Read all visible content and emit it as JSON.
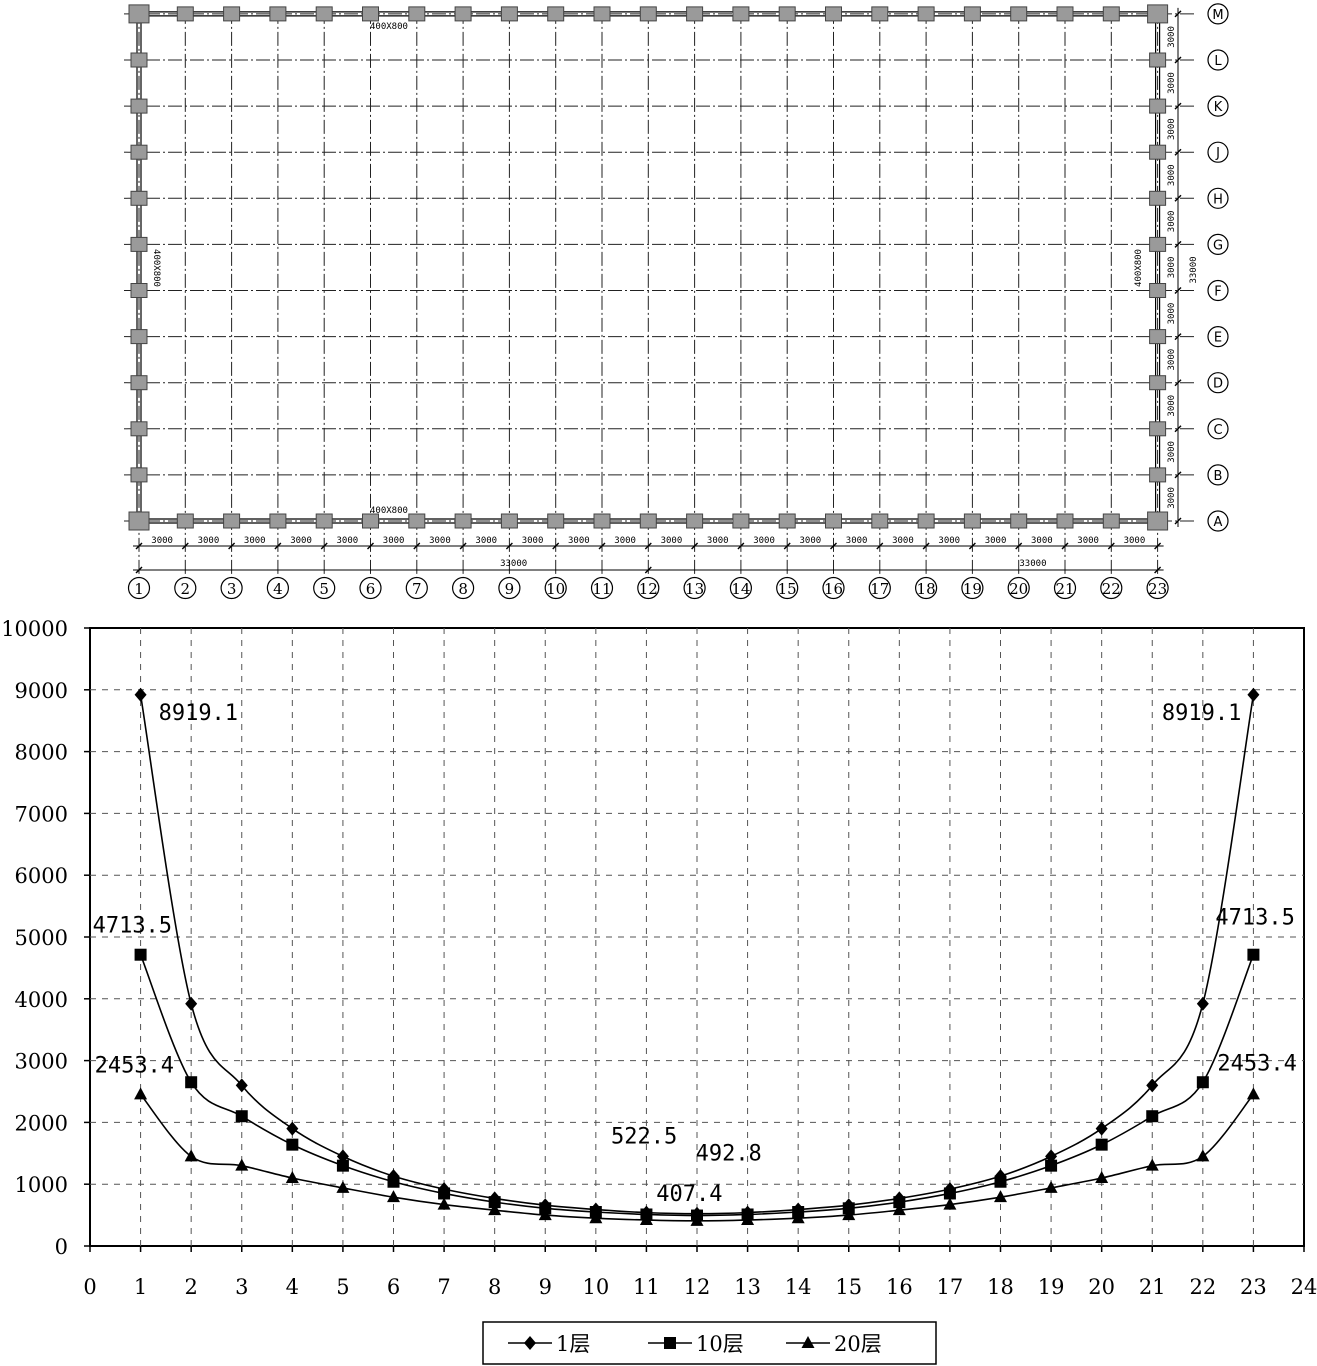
{
  "plan": {
    "column_axes": [
      "1",
      "2",
      "3",
      "4",
      "5",
      "6",
      "7",
      "8",
      "9",
      "10",
      "11",
      "12",
      "13",
      "14",
      "15",
      "16",
      "17",
      "18",
      "19",
      "20",
      "21",
      "22",
      "23"
    ],
    "row_axes": [
      "A",
      "B",
      "C",
      "D",
      "E",
      "F",
      "G",
      "H",
      "J",
      "K",
      "L",
      "M"
    ],
    "bay_label": "3000",
    "total_label_half": "33000",
    "total_label_vertical": "33000",
    "beam_label_top": "400X800",
    "beam_label_bottom": "400X800",
    "beam_label_left": "400X800",
    "beam_label_right": "400X800"
  },
  "chart_data": {
    "type": "line",
    "x": [
      1,
      2,
      3,
      4,
      5,
      6,
      7,
      8,
      9,
      10,
      11,
      12,
      13,
      14,
      15,
      16,
      17,
      18,
      19,
      20,
      21,
      22,
      23
    ],
    "xlim": [
      0,
      24
    ],
    "ylim": [
      0,
      10000
    ],
    "xticks": [
      0,
      1,
      2,
      3,
      4,
      5,
      6,
      7,
      8,
      9,
      10,
      11,
      12,
      13,
      14,
      15,
      16,
      17,
      18,
      19,
      20,
      21,
      22,
      23,
      24
    ],
    "yticks": [
      0,
      1000,
      2000,
      3000,
      4000,
      5000,
      6000,
      7000,
      8000,
      9000,
      10000
    ],
    "grid": true,
    "legend_position": "bottom",
    "series": [
      {
        "name": "1层",
        "marker": "diamond",
        "values": [
          8919.1,
          3920,
          2600,
          1900,
          1450,
          1130,
          920,
          770,
          660,
          590,
          540,
          522.5,
          540,
          590,
          660,
          770,
          920,
          1130,
          1450,
          1900,
          2600,
          3920,
          8919.1
        ]
      },
      {
        "name": "10层",
        "marker": "square",
        "values": [
          4713.5,
          2650,
          2100,
          1640,
          1300,
          1040,
          850,
          710,
          610,
          550,
          510,
          492.8,
          510,
          550,
          610,
          710,
          850,
          1040,
          1300,
          1640,
          2100,
          2650,
          4713.5
        ]
      },
      {
        "name": "20层",
        "marker": "triangle",
        "values": [
          2453.4,
          1450,
          1300,
          1100,
          940,
          790,
          670,
          580,
          500,
          450,
          420,
          407.4,
          420,
          450,
          500,
          580,
          670,
          790,
          940,
          1100,
          1300,
          1450,
          2453.4
        ]
      }
    ],
    "annotations": [
      {
        "text": "8919.1",
        "x": 1,
        "y": 8919.1
      },
      {
        "text": "8919.1",
        "x": 23,
        "y": 8919.1
      },
      {
        "text": "4713.5",
        "x": 1,
        "y": 4713.5
      },
      {
        "text": "4713.5",
        "x": 23,
        "y": 4713.5
      },
      {
        "text": "2453.4",
        "x": 1,
        "y": 2453.4
      },
      {
        "text": "2453.4",
        "x": 23,
        "y": 2453.4
      },
      {
        "text": "522.5",
        "x": 12,
        "y": 522.5
      },
      {
        "text": "492.8",
        "x": 13,
        "y": 492.8
      },
      {
        "text": "407.4",
        "x": 12.5,
        "y": 407.4
      }
    ]
  }
}
